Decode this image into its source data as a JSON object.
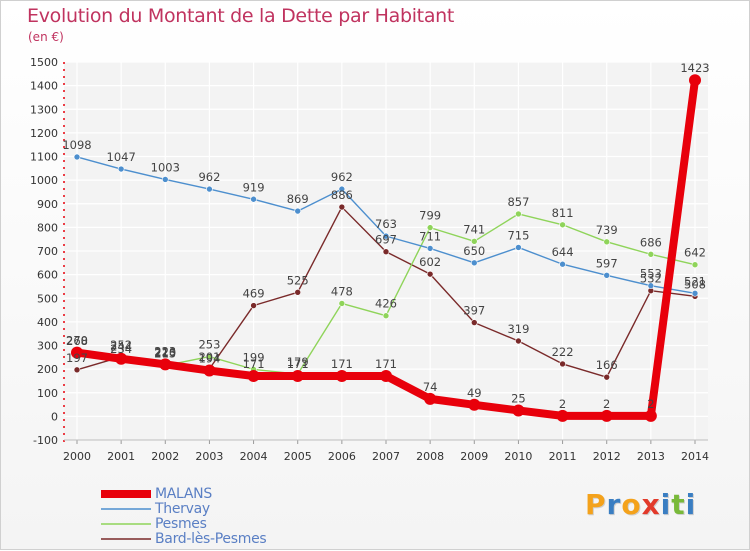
{
  "title": "Evolution du Montant de la Dette par Habitant",
  "subtitle": "(en €)",
  "brand": {
    "text": "Proxiti",
    "letters": [
      "P",
      "r",
      "o",
      "x",
      "i",
      "t",
      "i"
    ],
    "colors": [
      "#f4a21b",
      "#3a7ec2",
      "#f4a21b",
      "#e23a2b",
      "#3a7ec2",
      "#79b93a",
      "#3a7ec2"
    ]
  },
  "chart_data": {
    "type": "line",
    "title": "Evolution du Montant de la Dette par Habitant",
    "subtitle": "(en €)",
    "xlabel": "",
    "ylabel": "",
    "x": [
      "2000",
      "2001",
      "2002",
      "2003",
      "2004",
      "2005",
      "2006",
      "2007",
      "2008",
      "2009",
      "2010",
      "2011",
      "2012",
      "2013",
      "2014"
    ],
    "ylim": [
      -100,
      1500
    ],
    "yticks": [
      -100,
      0,
      100,
      200,
      300,
      400,
      500,
      600,
      700,
      800,
      900,
      1000,
      1100,
      1200,
      1300,
      1400,
      1500
    ],
    "grid": true,
    "legend_position": "bottom-left",
    "series": [
      {
        "name": "MALANS",
        "color": "#e8000b",
        "values": [
          270,
          244,
          220,
          194,
          171,
          171,
          171,
          171,
          74,
          49,
          25,
          2,
          2,
          2,
          1423
        ],
        "labels": [
          "270",
          "244",
          "220",
          "194",
          "171",
          "171",
          "171",
          "171",
          "74",
          "49",
          "25",
          "2",
          "2",
          "2",
          "1423"
        ]
      },
      {
        "name": "Thervay",
        "color": "#4d8fce",
        "values": [
          1098,
          1047,
          1003,
          962,
          919,
          869,
          962,
          763,
          711,
          650,
          715,
          644,
          597,
          553,
          521
        ],
        "labels": [
          "1098",
          "1047",
          "1003",
          "962",
          "919",
          "869",
          "962",
          "763",
          "711",
          "650",
          "715",
          "644",
          "597",
          "553",
          "521"
        ]
      },
      {
        "name": "Pesmes",
        "color": "#8fd45a",
        "values": [
          268,
          234,
          215,
          253,
          199,
          179,
          478,
          426,
          799,
          741,
          857,
          811,
          739,
          686,
          642
        ],
        "labels": [
          "268",
          "234",
          "215",
          "253",
          "199",
          "179",
          "478",
          "426",
          "799",
          "741",
          "857",
          "811",
          "739",
          "686",
          "642"
        ]
      },
      {
        "name": "Bard-lès-Pesmes",
        "color": "#7a2a2a",
        "values": [
          197,
          252,
          223,
          201,
          469,
          525,
          886,
          697,
          602,
          397,
          319,
          222,
          166,
          532,
          508
        ],
        "labels": [
          "197",
          "252",
          "223",
          "201",
          "469",
          "525",
          "886",
          "697",
          "602",
          "397",
          "319",
          "222",
          "166",
          "532",
          "508"
        ]
      }
    ]
  },
  "legend": {
    "items": [
      {
        "label": "MALANS",
        "color": "#e8000b"
      },
      {
        "label": "Thervay",
        "color": "#4d8fce"
      },
      {
        "label": "Pesmes",
        "color": "#8fd45a"
      },
      {
        "label": "Bard-lès-Pesmes",
        "color": "#7a2a2a"
      }
    ]
  }
}
